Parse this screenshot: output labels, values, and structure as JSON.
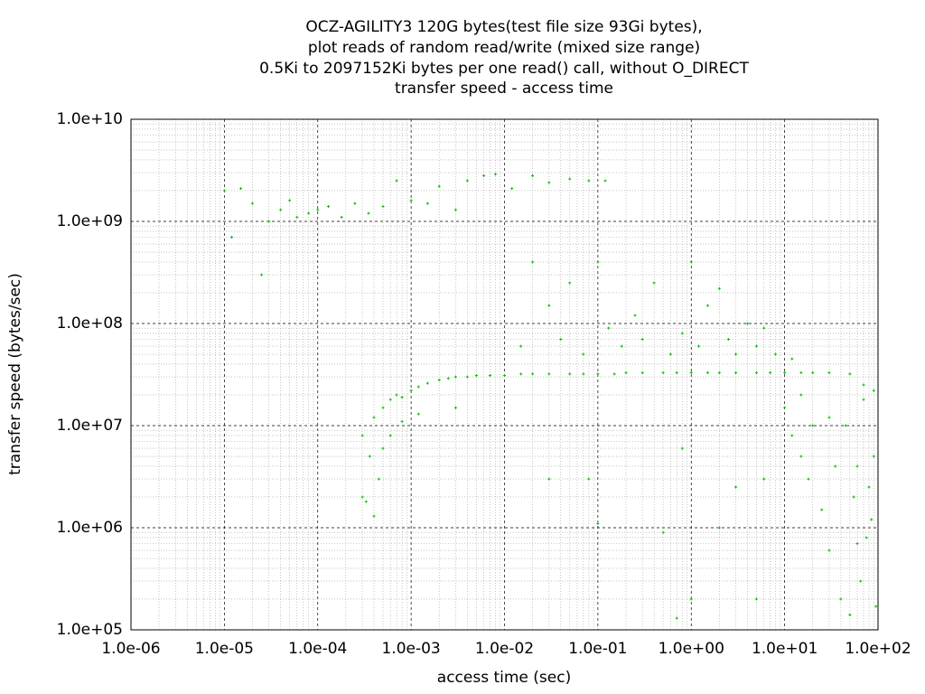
{
  "chart_data": {
    "type": "scatter",
    "title": [
      "OCZ-AGILITY3 120G bytes(test file size 93Gi bytes),",
      "plot reads of random read/write (mixed size range)",
      "0.5Ki to 2097152Ki bytes per one read() call, without O_DIRECT",
      "transfer speed - access time"
    ],
    "x_label": "access time (sec)",
    "y_label": "transfer speed (bytes/sec)",
    "x_log": true,
    "y_log": true,
    "grid": true,
    "minor_grid": true,
    "color": "#00c000",
    "xlim": [
      1e-06,
      100
    ],
    "ylim": [
      100000.0,
      10000000000.0
    ],
    "xticks": [
      {
        "value": 1e-06,
        "label": "1.0e-06"
      },
      {
        "value": 1e-05,
        "label": "1.0e-05"
      },
      {
        "value": 0.0001,
        "label": "1.0e-04"
      },
      {
        "value": 0.001,
        "label": "1.0e-03"
      },
      {
        "value": 0.01,
        "label": "1.0e-02"
      },
      {
        "value": 0.1,
        "label": "1.0e-01"
      },
      {
        "value": 1,
        "label": "1.0e+00"
      },
      {
        "value": 10,
        "label": "1.0e+01"
      },
      {
        "value": 100,
        "label": "1.0e+02"
      }
    ],
    "yticks": [
      {
        "value": 100000.0,
        "label": "1.0e+05"
      },
      {
        "value": 1000000.0,
        "label": "1.0e+06"
      },
      {
        "value": 10000000.0,
        "label": "1.0e+07"
      },
      {
        "value": 100000000.0,
        "label": "1.0e+08"
      },
      {
        "value": 1000000000.0,
        "label": "1.0e+09"
      },
      {
        "value": 10000000000.0,
        "label": "1.0e+10"
      }
    ],
    "x": [
      1e-05,
      1.2e-05,
      1.5e-05,
      2e-05,
      2.5e-05,
      3e-05,
      4e-05,
      5e-05,
      6e-05,
      8e-05,
      0.0001,
      0.00013,
      0.00018,
      0.00025,
      0.00035,
      0.0005,
      0.0007,
      0.001,
      0.0015,
      0.002,
      0.003,
      0.004,
      0.006,
      0.008,
      0.012,
      0.02,
      0.03,
      0.05,
      0.08,
      0.12,
      0.0003,
      0.0004,
      0.0005,
      0.0006,
      0.0007,
      0.0008,
      0.001,
      0.0012,
      0.0015,
      0.002,
      0.0025,
      0.003,
      0.004,
      0.005,
      0.007,
      0.01,
      0.015,
      0.02,
      0.03,
      0.05,
      0.07,
      0.1,
      0.15,
      0.2,
      0.3,
      0.5,
      0.7,
      1,
      1.5,
      2,
      3,
      5,
      7,
      10,
      15,
      20,
      30,
      50,
      70,
      90,
      0.015,
      0.02,
      0.03,
      0.04,
      0.05,
      0.07,
      0.1,
      0.13,
      0.18,
      0.25,
      0.3,
      0.4,
      0.6,
      0.8,
      1,
      1.2,
      1.5,
      2,
      2.5,
      3,
      4,
      5,
      6,
      8,
      12,
      0.0003,
      0.00033,
      0.00036,
      0.0004,
      0.00045,
      0.0005,
      0.0006,
      0.0008,
      0.0012,
      0.003,
      0.03,
      0.08,
      0.1,
      0.5,
      0.7,
      0.8,
      1,
      2,
      3,
      5,
      6,
      10,
      12,
      15,
      18,
      20,
      25,
      30,
      35,
      40,
      45,
      50,
      55,
      60,
      65,
      70,
      75,
      80,
      85,
      90,
      95,
      15,
      30,
      60
    ],
    "values": [
      2000000000.0,
      700000000.0,
      2100000000.0,
      1500000000.0,
      300000000.0,
      1000000000.0,
      1300000000.0,
      1600000000.0,
      1100000000.0,
      1200000000.0,
      1300000000.0,
      1400000000.0,
      1100000000.0,
      1500000000.0,
      1200000000.0,
      1400000000.0,
      2500000000.0,
      1600000000.0,
      1500000000.0,
      2200000000.0,
      1300000000.0,
      2500000000.0,
      2800000000.0,
      2900000000.0,
      2100000000.0,
      2800000000.0,
      2400000000.0,
      2600000000.0,
      2500000000.0,
      2500000000.0,
      8000000.0,
      12000000.0,
      15000000.0,
      18000000.0,
      20000000.0,
      19000000.0,
      22000000.0,
      24000000.0,
      26000000.0,
      28000000.0,
      29000000.0,
      30000000.0,
      30000000.0,
      31000000.0,
      31000000.0,
      31000000.0,
      32000000.0,
      32000000.0,
      32000000.0,
      32000000.0,
      32000000.0,
      32000000.0,
      32000000.0,
      33000000.0,
      33000000.0,
      33000000.0,
      33000000.0,
      33000000.0,
      33000000.0,
      33000000.0,
      33000000.0,
      33000000.0,
      33000000.0,
      33000000.0,
      33000000.0,
      33000000.0,
      33000000.0,
      32000000.0,
      25000000.0,
      22000000.0,
      60000000.0,
      400000000.0,
      150000000.0,
      70000000.0,
      250000000.0,
      50000000.0,
      400000000.0,
      90000000.0,
      60000000.0,
      120000000.0,
      70000000.0,
      250000000.0,
      50000000.0,
      80000000.0,
      400000000.0,
      60000000.0,
      150000000.0,
      220000000.0,
      70000000.0,
      50000000.0,
      100000000.0,
      60000000.0,
      90000000.0,
      50000000.0,
      45000000.0,
      2000000.0,
      1800000.0,
      5000000.0,
      1300000.0,
      3000000.0,
      6000000.0,
      8000000.0,
      11000000.0,
      13000000.0,
      15000000.0,
      3000000.0,
      3000000.0,
      1100000.0,
      900000.0,
      130000.0,
      6000000.0,
      200000.0,
      1000000.0,
      2500000.0,
      200000.0,
      3000000.0,
      15000000.0,
      8000000.0,
      5000000.0,
      3000000.0,
      10000000.0,
      1500000.0,
      600000.0,
      4000000.0,
      200000.0,
      10000000.0,
      140000.0,
      2000000.0,
      700000.0,
      300000.0,
      18000000.0,
      800000.0,
      2500000.0,
      1200000.0,
      5000000.0,
      170000.0,
      20000000.0,
      12000000.0,
      4000000.0
    ]
  }
}
